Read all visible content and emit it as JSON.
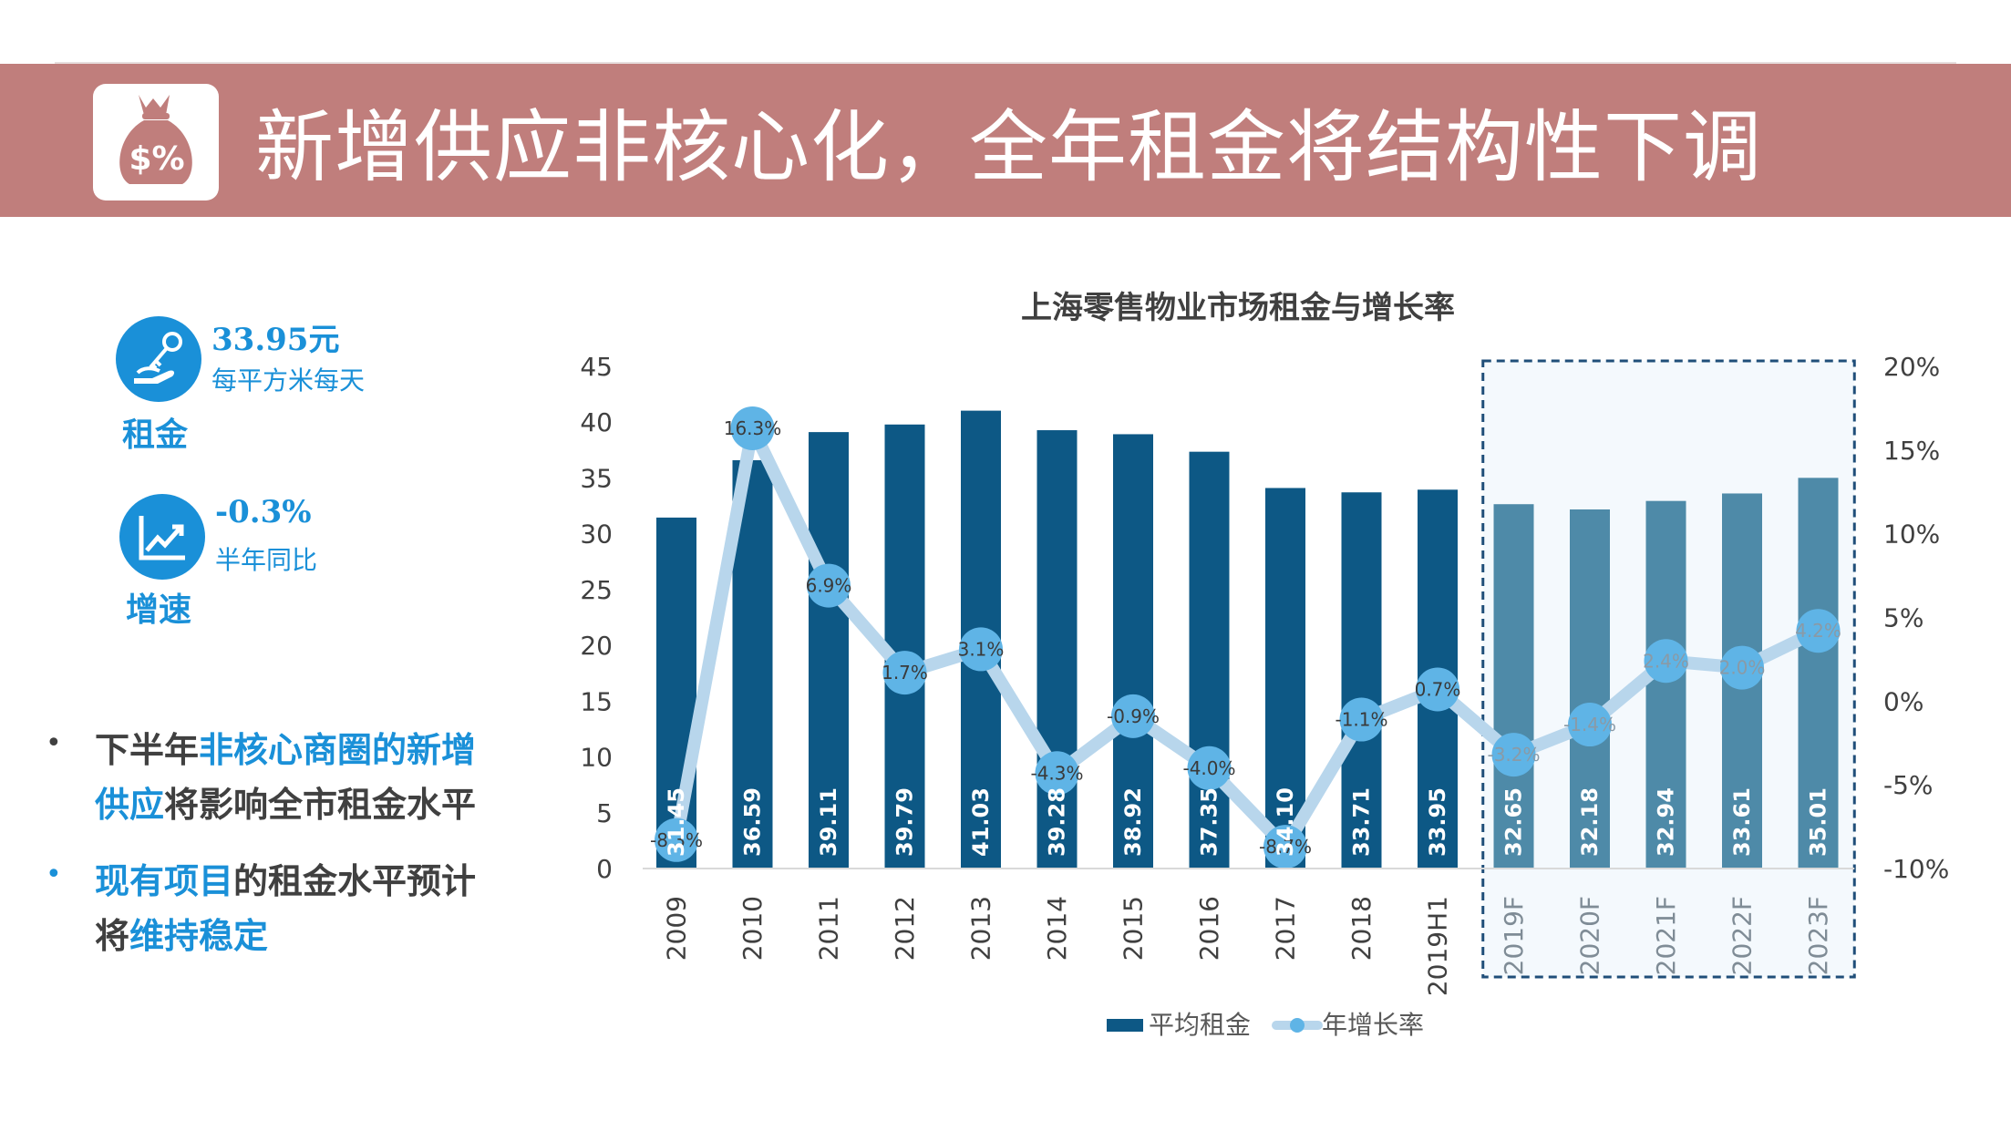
{
  "header": {
    "title": "新增供应非核心化，全年租金将结构性下调",
    "logo": "money-bag-percent-icon",
    "logo_color": "#c07e7c"
  },
  "metrics": [
    {
      "value": "33.95元",
      "desc": "每平方米每天",
      "label": "租金",
      "icon": "hand-key-icon"
    },
    {
      "value": "-0.3%",
      "desc": "半年同比",
      "label": "增速",
      "icon": "trend-chart-icon"
    }
  ],
  "bullets": [
    {
      "lines": [
        [
          {
            "t": "下半年",
            "hl": false
          },
          {
            "t": "非核心商圈的新增",
            "hl": true
          }
        ],
        [
          {
            "t": "供应",
            "hl": true
          },
          {
            "t": "将影响全市租金水平",
            "hl": false
          }
        ]
      ]
    },
    {
      "lines": [
        [
          {
            "t": "现有项目",
            "hl": true
          },
          {
            "t": "的租金水平预计",
            "hl": false
          }
        ],
        [
          {
            "t": "将",
            "hl": false
          },
          {
            "t": "维持稳定",
            "hl": true
          }
        ]
      ]
    }
  ],
  "colors": {
    "accent": "#1a90d8",
    "bar_actual": "#0d5885",
    "bar_forecast": "#4e8aa8",
    "line": "#b8d6ec",
    "marker": "#5fb4e6",
    "forecast_border": "#1f4e79",
    "forecast_fill": "#f4f9fd"
  },
  "chart_data": {
    "type": "bar+line",
    "title": "上海零售物业市场租金与增长率",
    "categories": [
      "2009",
      "2010",
      "2011",
      "2012",
      "2013",
      "2014",
      "2015",
      "2016",
      "2017",
      "2018",
      "2019H1",
      "2019F",
      "2020F",
      "2021F",
      "2022F",
      "2023F"
    ],
    "forecast_from_index": 11,
    "series": [
      {
        "name": "平均租金",
        "type": "bar",
        "axis": "left",
        "values": [
          31.45,
          36.59,
          39.11,
          39.79,
          41.03,
          39.28,
          38.92,
          37.35,
          34.1,
          33.71,
          33.95,
          32.65,
          32.18,
          32.94,
          33.61,
          35.01
        ],
        "labels": [
          "31.45",
          "36.59",
          "39.11",
          "39.79",
          "41.03",
          "39.28",
          "38.92",
          "37.35",
          "34.10",
          "33.71",
          "33.95",
          "32.65",
          "32.18",
          "32.94",
          "33.61",
          "35.01"
        ]
      },
      {
        "name": "年增长率",
        "type": "line",
        "axis": "right",
        "values": [
          -8.3,
          16.3,
          6.9,
          1.7,
          3.1,
          -4.3,
          -0.9,
          -4.0,
          -8.7,
          -1.1,
          0.7,
          -3.2,
          -1.4,
          2.4,
          2.0,
          4.2
        ],
        "labels": [
          "-8.3%",
          "16.3%",
          "6.9%",
          "1.7%",
          "3.1%",
          "-4.3%",
          "-0.9%",
          "-4.0%",
          "-8.7%",
          "-1.1%",
          "0.7%",
          "-3.2%",
          "-1.4%",
          "2.4%",
          "2.0%",
          "4.2%"
        ]
      }
    ],
    "y_left": {
      "min": 0,
      "max": 45,
      "ticks": [
        "0",
        "5",
        "10",
        "15",
        "20",
        "25",
        "30",
        "35",
        "40",
        "45"
      ]
    },
    "y_right": {
      "min": -10,
      "max": 20,
      "ticks": [
        "-10%",
        "-5%",
        "0%",
        "5%",
        "10%",
        "15%",
        "20%"
      ]
    },
    "legend": {
      "position": "bottom",
      "items": [
        "平均租金",
        "年增长率"
      ]
    },
    "grid": false
  }
}
